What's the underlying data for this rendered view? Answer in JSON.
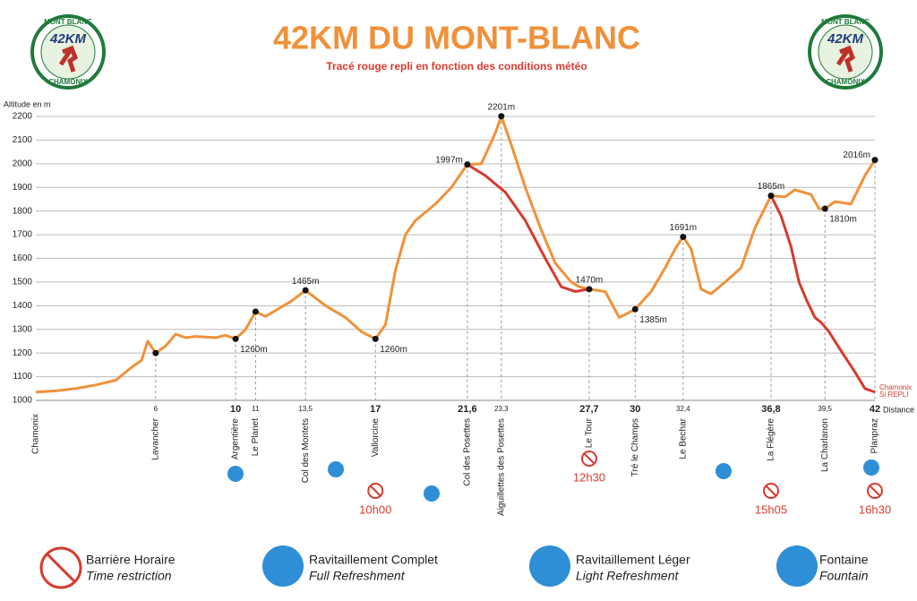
{
  "chart_data": {
    "type": "line",
    "title": "42KM DU MONT-BLANC",
    "subtitle": "Tracé rouge repli en fonction des conditions météo",
    "ylabel": "Altitude en m",
    "xlabel": "Distance en km",
    "start_label": "Chamonix",
    "end_labels": [
      "Chamonix",
      "Si REPLI"
    ],
    "logo": {
      "top": "MONT BLANC",
      "middle": "42KM",
      "bottom": "CHAMONIX"
    },
    "xlim": [
      0,
      42
    ],
    "ylim": [
      1000,
      2200
    ],
    "yticks": [
      1000,
      1100,
      1200,
      1300,
      1400,
      1500,
      1600,
      1700,
      1800,
      1900,
      2000,
      2100,
      2200
    ],
    "xticks": [
      6,
      10,
      11,
      {
        "value": 13.5,
        "label": "13,5"
      },
      17,
      {
        "value": 21.6,
        "label": "21,6"
      },
      {
        "value": 23.3,
        "label": "23,3"
      },
      {
        "value": 27.7,
        "label": "27,7"
      },
      30,
      {
        "value": 32.4,
        "label": "32,4"
      },
      {
        "value": 36.8,
        "label": "36,8"
      },
      {
        "value": 39.5,
        "label": "39,5"
      },
      42
    ],
    "stations": [
      "Lavancher",
      "Argentière",
      "Le Planet",
      "Col des Montets",
      "Vallorcine",
      "Col des Posettes",
      "Aiguillettes des Posettes",
      "Le Tour",
      "Tré le Champs",
      "Le Bechar",
      "La Flégère",
      "La Charlanon",
      "Planpraz"
    ],
    "grid": true,
    "series": [
      {
        "color": "#f0913a",
        "x": [
          0,
          1,
          2,
          3,
          4,
          4.8,
          5.3,
          5.6,
          6,
          6.5,
          7,
          7.5,
          8,
          9,
          9.5,
          10,
          10.5,
          11,
          11.5,
          12,
          12.8,
          13.5,
          14.5,
          15.5,
          16.3,
          17,
          17.5,
          18,
          18.5,
          19,
          20,
          20.8,
          21.6,
          22.3,
          23,
          23.3,
          23.8,
          24.5,
          25.3,
          26,
          26.8,
          27.2,
          27.7,
          28.5,
          29.2,
          30,
          30.8,
          31.5,
          32,
          32.4,
          32.8,
          33.3,
          33.8,
          34.5,
          35.3,
          36,
          36.8,
          37.5,
          38,
          38.8,
          39.2,
          39.5,
          40,
          40.8,
          41.5,
          42
        ],
        "values": [
          1035,
          1040,
          1050,
          1065,
          1085,
          1140,
          1170,
          1250,
          1200,
          1230,
          1280,
          1265,
          1270,
          1265,
          1275,
          1260,
          1300,
          1375,
          1355,
          1380,
          1420,
          1465,
          1400,
          1350,
          1290,
          1260,
          1320,
          1550,
          1700,
          1760,
          1830,
          1900,
          1997,
          2000,
          2130,
          2201,
          2080,
          1900,
          1720,
          1580,
          1500,
          1480,
          1470,
          1460,
          1350,
          1385,
          1460,
          1560,
          1640,
          1691,
          1640,
          1470,
          1450,
          1500,
          1560,
          1730,
          1865,
          1860,
          1890,
          1870,
          1810,
          1810,
          1840,
          1830,
          1950,
          2016
        ]
      },
      {
        "color": "#d63b2f",
        "x": [
          21.6,
          22.5,
          23.5,
          24.5,
          25.5,
          26.3,
          27,
          27.7
        ],
        "values": [
          1997,
          1950,
          1880,
          1760,
          1600,
          1480,
          1460,
          1470
        ]
      },
      {
        "color": "#d63b2f",
        "x": [
          36.8,
          37.3,
          37.8,
          38.2,
          38.6,
          39,
          39.3,
          39.7,
          40.3,
          41,
          41.5,
          42
        ],
        "values": [
          1865,
          1780,
          1650,
          1500,
          1420,
          1350,
          1330,
          1290,
          1210,
          1120,
          1050,
          1035
        ]
      }
    ],
    "points": {
      "x": [
        6,
        10,
        11,
        13.5,
        17,
        21.6,
        23.3,
        27.7,
        30,
        32.4,
        36.8,
        39.5,
        42
      ],
      "values": [
        1200,
        1260,
        1375,
        1465,
        1260,
        1997,
        2201,
        1470,
        1385,
        1691,
        1865,
        1810,
        2016
      ],
      "value_labels": [
        null,
        "1260m",
        null,
        "1465m",
        "1260m",
        "1997m",
        "2201m",
        "1470m",
        "1385m",
        "1691m",
        "1865m",
        "1810m",
        "2016m"
      ]
    },
    "time_barriers": {
      "x": [
        17,
        27.7,
        36.8,
        42
      ],
      "labels": [
        "10h00",
        "12h30",
        "15h05",
        "16h30"
      ]
    },
    "legend": [
      {
        "title": "Barrière Horaire",
        "subtitle": "Time restriction"
      },
      {
        "title": "Ravitaillement Complet",
        "subtitle": "Full Refreshment"
      },
      {
        "title": "Ravitaillement Léger",
        "subtitle": "Light Refreshment"
      },
      {
        "title": "Fontaine",
        "subtitle": "Fountain"
      }
    ]
  }
}
